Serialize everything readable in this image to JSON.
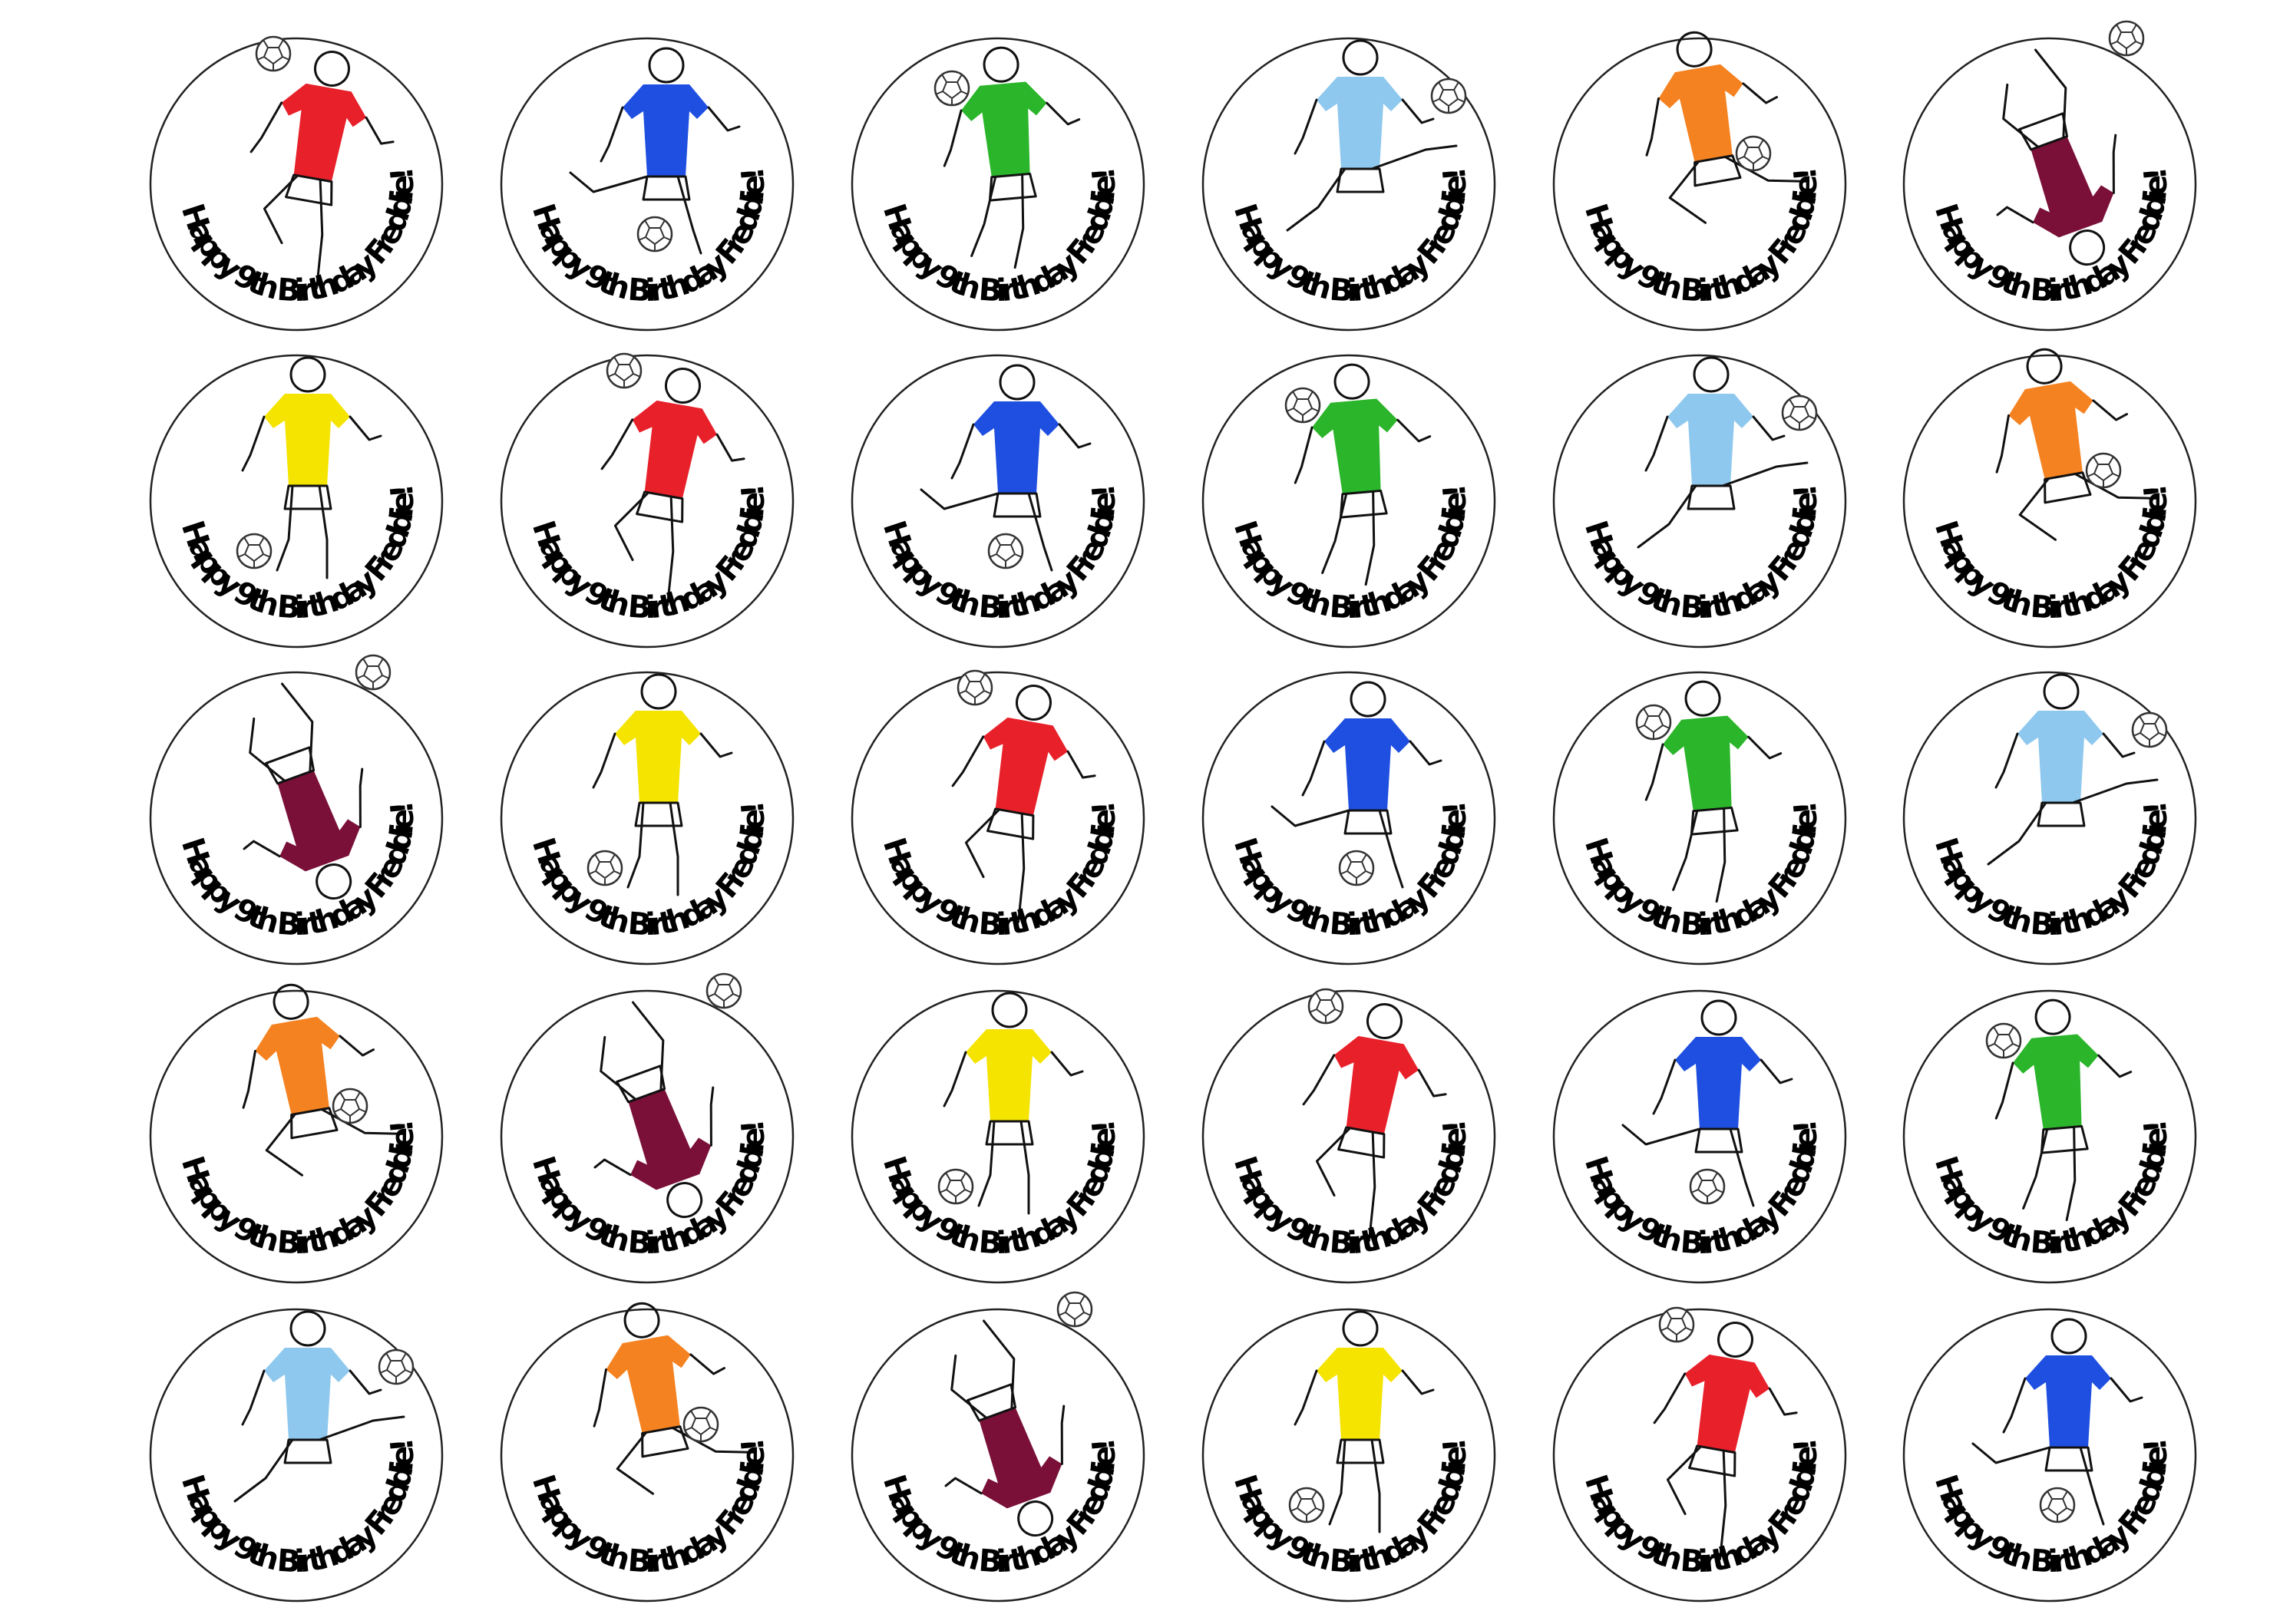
{
  "sheet": {
    "columns": 6,
    "rows": 5,
    "message": "Happy 9th Birthday Freddie!",
    "colors": {
      "red": "#e8202a",
      "blue": "#1f4fe0",
      "green": "#2bb52b",
      "lightblue": "#8ec8ee",
      "orange": "#f58220",
      "maroon": "#7a1038",
      "yellow": "#f5e400"
    },
    "toppers": [
      {
        "text": "Happy 9th Birthday Freddie!",
        "shirt": "red",
        "pose": "header"
      },
      {
        "text": "Happy 9th Birthday Freddie!",
        "shirt": "blue",
        "pose": "kick"
      },
      {
        "text": "Happy 9th Birthday Freddie!",
        "shirt": "green",
        "pose": "run"
      },
      {
        "text": "Happy 9th Birthday Freddie!",
        "shirt": "lightblue",
        "pose": "volley"
      },
      {
        "text": "Happy 9th Birthday Freddie!",
        "shirt": "orange",
        "pose": "jump"
      },
      {
        "text": "Happy 9th Birthday Freddie!",
        "shirt": "maroon",
        "pose": "bicycle"
      },
      {
        "text": "Happy 9th Birthday Freddie!",
        "shirt": "yellow",
        "pose": "dribble"
      },
      {
        "text": "Happy 9th Birthday Freddie!",
        "shirt": "red",
        "pose": "header"
      },
      {
        "text": "Happy 9th Birthday Freddie!",
        "shirt": "blue",
        "pose": "kick"
      },
      {
        "text": "Happy 9th Birthday Freddie!",
        "shirt": "green",
        "pose": "run"
      },
      {
        "text": "Happy 9th Birthday Freddie!",
        "shirt": "lightblue",
        "pose": "volley"
      },
      {
        "text": "Happy 9th Birthday Freddie!",
        "shirt": "orange",
        "pose": "jump"
      },
      {
        "text": "Happy 9th Birthday Freddie!",
        "shirt": "maroon",
        "pose": "bicycle"
      },
      {
        "text": "Happy 9th Birthday Freddie!",
        "shirt": "yellow",
        "pose": "dribble"
      },
      {
        "text": "Happy 9th Birthday Freddie!",
        "shirt": "red",
        "pose": "header"
      },
      {
        "text": "Happy 9th Birthday Freddie!",
        "shirt": "blue",
        "pose": "kick"
      },
      {
        "text": "Happy 9th Birthday Freddie!",
        "shirt": "green",
        "pose": "run"
      },
      {
        "text": "Happy 9th Birthday Freddie!",
        "shirt": "lightblue",
        "pose": "volley"
      },
      {
        "text": "Happy 9th Birthday Freddie!",
        "shirt": "orange",
        "pose": "jump"
      },
      {
        "text": "Happy 9th Birthday Freddie!",
        "shirt": "maroon",
        "pose": "bicycle"
      },
      {
        "text": "Happy 9th Birthday Freddie!",
        "shirt": "yellow",
        "pose": "dribble"
      },
      {
        "text": "Happy 9th Birthday Freddie!",
        "shirt": "red",
        "pose": "header"
      },
      {
        "text": "Happy 9th Birthday Freddie!",
        "shirt": "blue",
        "pose": "kick"
      },
      {
        "text": "Happy 9th Birthday Freddie!",
        "shirt": "green",
        "pose": "run"
      },
      {
        "text": "Happy 9th Birthday Freddie!",
        "shirt": "lightblue",
        "pose": "volley"
      },
      {
        "text": "Happy 9th Birthday Freddie!",
        "shirt": "orange",
        "pose": "jump"
      },
      {
        "text": "Happy 9th Birthday Freddie!",
        "shirt": "maroon",
        "pose": "bicycle"
      },
      {
        "text": "Happy 9th Birthday Freddie!",
        "shirt": "yellow",
        "pose": "dribble"
      },
      {
        "text": "Happy 9th Birthday Freddie!",
        "shirt": "red",
        "pose": "header"
      },
      {
        "text": "Happy 9th Birthday Freddie!",
        "shirt": "blue",
        "pose": "kick"
      }
    ]
  }
}
